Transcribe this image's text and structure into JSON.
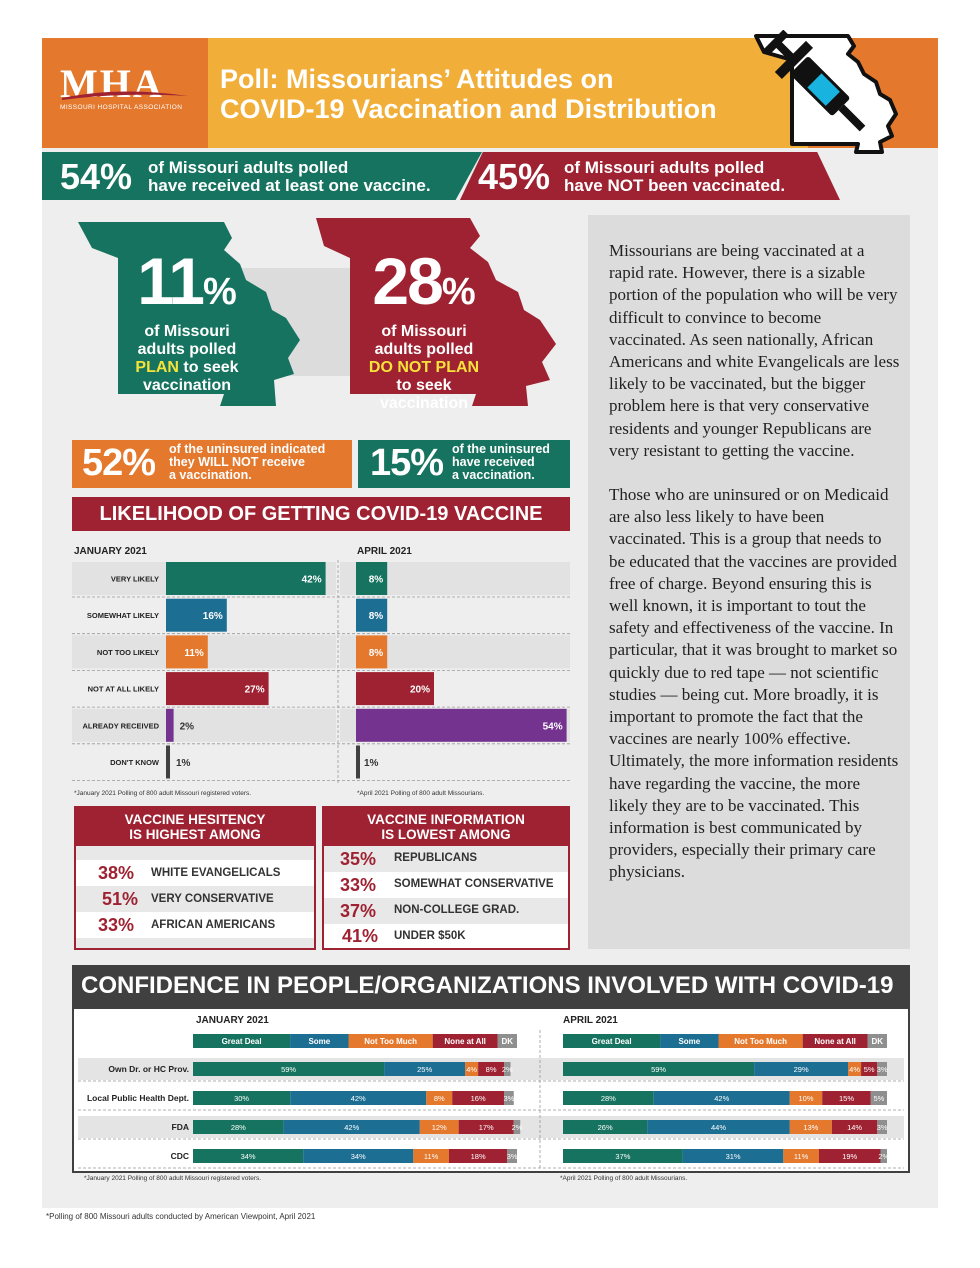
{
  "header": {
    "logo_text": "MHA",
    "logo_subtext": "MISSOURI HOSPITAL ASSOCIATION",
    "title_line1": "Poll: Missourians’ Attitudes on",
    "title_line2": "COVID-19 Vaccination and Distribution"
  },
  "banner": {
    "left_pct": "54%",
    "left_line1": "of Missouri adults polled",
    "left_line2": "have received at least one vaccine.",
    "right_pct": "45%",
    "right_line1": "of Missouri adults polled",
    "right_line2": "have NOT been vaccinated."
  },
  "plan": {
    "green_pct": "11",
    "green_line1": "of Missouri",
    "green_line2": "adults polled",
    "green_highlight": "PLAN",
    "green_line3_rest": " to seek",
    "green_line4": "vaccination",
    "red_pct": "28",
    "red_line1": "of Missouri",
    "red_line2": "adults polled",
    "red_highlight": "DO NOT PLAN",
    "red_line3": "to seek",
    "red_line4": "vaccination",
    "pct_sign": "%"
  },
  "uninsured": {
    "left_pct": "52%",
    "left_line1": "of the uninsured indicated",
    "left_line2a": "they ",
    "left_line2b": "WILL NOT",
    "left_line2c": " receive",
    "left_line3": "a vaccination.",
    "right_pct": "15%",
    "right_line1": "of the uninsured",
    "right_line2": "have received",
    "right_line3": "a vaccination."
  },
  "likelihood": {
    "title": "LIKELIHOOD OF GETTING COVID-19 VACCINE",
    "jan_header": "JANUARY 2021",
    "apr_header": "APRIL 2021",
    "jan_note": "*January 2021 Polling of 800 adult Missouri registered voters.",
    "apr_note": "*April 2021 Polling of 800 adult Missourians."
  },
  "side_text": {
    "para1": "Missourians are being vaccinated at a rapid rate. However, there is a sizable portion of the population who will be very difficult to convince to become vaccinated. As seen nationally, African Americans and white Evangelicals are less likely to be vaccinated, but the bigger problem here is that very conservative residents and younger Republicans are very resistant to getting the vaccine.",
    "para2": "Those who are uninsured or on Medicaid are also less likely to have been vaccinated. This is a group that needs to be educated that the vaccines are provided free of charge. Beyond ensuring this is well known, it is important to tout the safety and effectiveness of the vaccine. In particular, that it was brought to market so quickly due to red tape — not scientific studies — being cut. More broadly, it is important to promote the fact that the vaccines are nearly 100% effective. Ultimately, the more information residents have regarding the vaccine, the more likely they are to be vaccinated. This information is best communicated by providers, especially their primary care physicians."
  },
  "hesitancy": {
    "title_line1": "VACCINE HESITENCY",
    "title_line2": "IS HIGHEST AMONG",
    "rows": [
      {
        "pct": "38%",
        "label": "WHITE EVANGELICALS"
      },
      {
        "pct": "51%",
        "label": "VERY CONSERVATIVE"
      },
      {
        "pct": "33%",
        "label": "AFRICAN AMERICANS"
      }
    ]
  },
  "information": {
    "title_line1": "VACCINE INFORMATION",
    "title_line2": "IS LOWEST AMONG",
    "rows": [
      {
        "pct": "35%",
        "label": "REPUBLICANS"
      },
      {
        "pct": "33%",
        "label": "SOMEWHAT CONSERVATIVE"
      },
      {
        "pct": "37%",
        "label": "NON-COLLEGE GRAD."
      },
      {
        "pct": "41%",
        "label": "UNDER $50K"
      }
    ]
  },
  "confidence": {
    "title": "CONFIDENCE IN PEOPLE/ORGANIZATIONS INVOLVED WITH COVID-19",
    "jan_header": "JANUARY 2021",
    "apr_header": "APRIL 2021",
    "jan_note": "*January 2021 Polling of 800 adult Missouri registered voters.",
    "apr_note": "*April 2021 Polling of 800 adult Missourians."
  },
  "footer": "*Polling of 800 Missouri adults conducted by American Viewpoint, April 2021",
  "colors": {
    "green": "#16735f",
    "blue": "#1c6e93",
    "orange": "#e4782c",
    "red": "#9e2232",
    "purple": "#73338f",
    "dk": "#8f8f8f",
    "yellow": "#f1ae38",
    "highlight": "#f7e23a"
  },
  "chart_data": [
    {
      "type": "bar",
      "title": "LIKELIHOOD OF GETTING COVID-19 VACCINE",
      "subtitle": "JANUARY 2021",
      "categories": [
        "VERY LIKELY",
        "SOMEWHAT LIKELY",
        "NOT TOO LIKELY",
        "NOT AT ALL LIKELY",
        "ALREADY RECEIVED",
        "DON'T KNOW"
      ],
      "values": [
        42,
        16,
        11,
        27,
        2,
        1
      ],
      "value_labels": [
        "42%",
        "16%",
        "11%",
        "27%",
        "2%",
        "1%"
      ],
      "bar_colors": [
        "#16735f",
        "#1c6e93",
        "#e4782c",
        "#9e2232",
        "#73338f",
        "#404040"
      ],
      "orientation": "horizontal",
      "xlim": [
        0,
        100
      ]
    },
    {
      "type": "bar",
      "title": "LIKELIHOOD OF GETTING COVID-19 VACCINE",
      "subtitle": "APRIL 2021",
      "categories": [
        "VERY LIKELY",
        "SOMEWHAT LIKELY",
        "NOT TOO LIKELY",
        "NOT AT ALL LIKELY",
        "ALREADY RECEIVED",
        "DON'T KNOW"
      ],
      "values": [
        8,
        8,
        8,
        20,
        54,
        1
      ],
      "value_labels": [
        "8%",
        "8%",
        "8%",
        "20%",
        "54%",
        "1%"
      ],
      "bar_colors": [
        "#16735f",
        "#1c6e93",
        "#e4782c",
        "#9e2232",
        "#73338f",
        "#404040"
      ],
      "orientation": "horizontal",
      "xlim": [
        0,
        100
      ]
    },
    {
      "type": "bar",
      "stacked": true,
      "orientation": "horizontal",
      "title": "CONFIDENCE IN PEOPLE/ORGANIZATIONS INVOLVED WITH COVID-19",
      "subtitle": "JANUARY 2021",
      "categories": [
        "Own Dr. or HC Prov.",
        "Local Public Health Dept.",
        "FDA",
        "CDC"
      ],
      "series": [
        {
          "name": "Great Deal",
          "color": "#16735f",
          "values": [
            59,
            30,
            28,
            34
          ],
          "labels": [
            "59%",
            "30%",
            "28%",
            "34%"
          ]
        },
        {
          "name": "Some",
          "color": "#1c6e93",
          "values": [
            25,
            42,
            42,
            34
          ],
          "labels": [
            "25%",
            "42%",
            "42%",
            "34%"
          ]
        },
        {
          "name": "Not Too Much",
          "color": "#e4782c",
          "values": [
            4,
            8,
            12,
            11
          ],
          "labels": [
            "4%",
            "8%",
            "12%",
            "11%"
          ]
        },
        {
          "name": "None at All",
          "color": "#9e2232",
          "values": [
            8,
            16,
            17,
            18
          ],
          "labels": [
            "8%",
            "16%",
            "17%",
            "18%"
          ]
        },
        {
          "name": "DK",
          "color": "#8f8f8f",
          "values": [
            2,
            3,
            2,
            3
          ],
          "labels": [
            "2%",
            "3%",
            "2%",
            "3%"
          ]
        }
      ]
    },
    {
      "type": "bar",
      "stacked": true,
      "orientation": "horizontal",
      "title": "CONFIDENCE IN PEOPLE/ORGANIZATIONS INVOLVED WITH COVID-19",
      "subtitle": "APRIL 2021",
      "categories": [
        "Own Dr. or HC Prov.",
        "Local Public Health Dept.",
        "FDA",
        "CDC"
      ],
      "series": [
        {
          "name": "Great Deal",
          "color": "#16735f",
          "values": [
            59,
            28,
            26,
            37
          ],
          "labels": [
            "59%",
            "28%",
            "26%",
            "37%"
          ]
        },
        {
          "name": "Some",
          "color": "#1c6e93",
          "values": [
            29,
            42,
            44,
            31
          ],
          "labels": [
            "29%",
            "42%",
            "44%",
            "31%"
          ]
        },
        {
          "name": "Not Too Much",
          "color": "#e4782c",
          "values": [
            4,
            10,
            13,
            11
          ],
          "labels": [
            "4%",
            "10%",
            "13%",
            "11%"
          ]
        },
        {
          "name": "None at All",
          "color": "#9e2232",
          "values": [
            5,
            15,
            14,
            19
          ],
          "labels": [
            "5%",
            "15%",
            "14%",
            "19%"
          ]
        },
        {
          "name": "DK",
          "color": "#8f8f8f",
          "values": [
            3,
            5,
            3,
            2
          ],
          "labels": [
            "3%",
            "5%",
            "3%",
            "2%"
          ]
        }
      ]
    }
  ]
}
